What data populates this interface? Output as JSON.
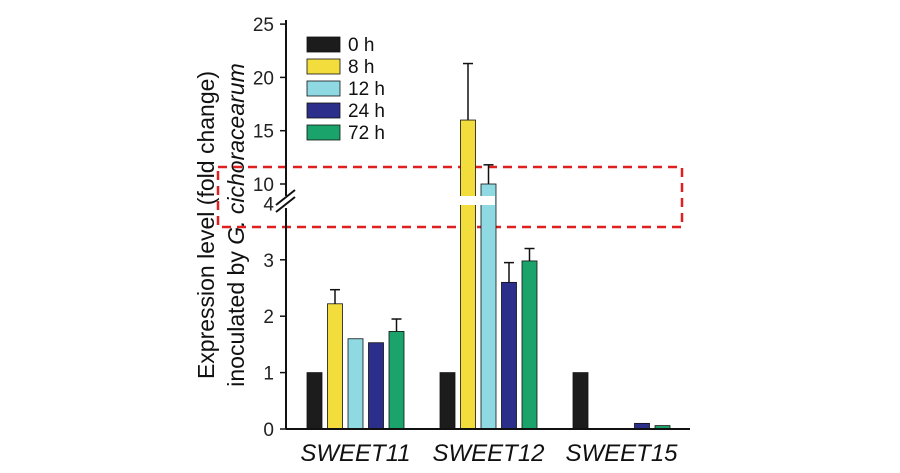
{
  "chart_data": {
    "type": "bar",
    "categories": [
      "SWEET11",
      "SWEET12",
      "SWEET15"
    ],
    "series": [
      {
        "name": "0 h",
        "color": "#1c1c1c",
        "values": [
          1.0,
          1.0,
          1.0
        ],
        "errors": [
          0,
          0,
          0
        ]
      },
      {
        "name": "8 h",
        "color": "#f2dd3c",
        "values": [
          2.22,
          16.0,
          0.0
        ],
        "errors": [
          0.25,
          5.3,
          0
        ]
      },
      {
        "name": "12 h",
        "color": "#8fd9e3",
        "values": [
          1.6,
          10.0,
          0.0
        ],
        "errors": [
          0,
          1.8,
          0
        ]
      },
      {
        "name": "24 h",
        "color": "#2c2e8c",
        "values": [
          1.53,
          2.6,
          0.1
        ],
        "errors": [
          0,
          0.35,
          0
        ]
      },
      {
        "name": "72 h",
        "color": "#1aa36a",
        "values": [
          1.73,
          2.98,
          0.06
        ],
        "errors": [
          0.22,
          0.22,
          0
        ]
      }
    ],
    "ylabel_line1": "Expression level (fold change)",
    "ylabel_line2_prefix": "inoculated by ",
    "ylabel_line2_species": "G. cichoracearum",
    "lower_axis": {
      "range": [
        0,
        4
      ],
      "ticks": [
        "0",
        "1",
        "2",
        "3",
        "4"
      ]
    },
    "upper_axis": {
      "range": [
        10,
        25
      ],
      "ticks": [
        "10",
        "15",
        "20",
        "25"
      ]
    },
    "broken_axis": true,
    "annotation": "dashed red box highlighting the axis break region",
    "highlight_color": "#e02020",
    "legend_position": "top-left"
  }
}
